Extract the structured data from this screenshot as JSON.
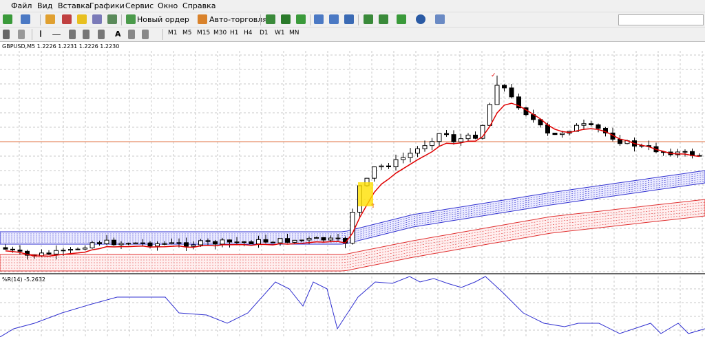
{
  "menu": [
    "Файл",
    "Вид",
    "Вставка",
    "Графики",
    "Сервис",
    "Окно",
    "Справка"
  ],
  "toolbar": {
    "new_order": "Новый ордер",
    "auto_trading": "Авто-торговля",
    "text_tool": "A"
  },
  "timeframes": [
    "M1",
    "M5",
    "M15",
    "M30",
    "H1",
    "H4",
    "D1",
    "W1",
    "MN"
  ],
  "chart": {
    "symbol_header": "GBPUSD,M5  1.2226 1.2231 1.2226 1.2230",
    "indicator_label": "%R(14) -5.2632"
  }
}
